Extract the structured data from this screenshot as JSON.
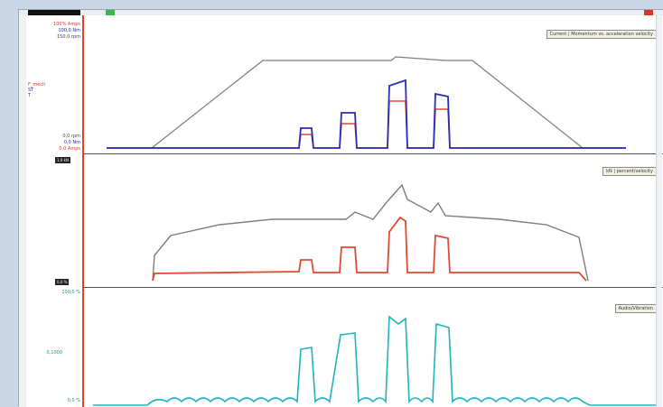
{
  "window": {
    "colors": {
      "gray": "#7d7d7d",
      "blue": "#2a2db5",
      "red": "#e24a2f",
      "teal": "#1fb3bf",
      "accent": "#e2412c"
    }
  },
  "panel1": {
    "labels": {
      "top_unit1": "100% Amps",
      "top_unit2": "100,0 Nm",
      "top_unit3": "150,0 rpm",
      "side_label1": "F_mech",
      "side_label2": "ST",
      "side_label3": "T",
      "bottom_unit1": "0,0 rpm",
      "bottom_unit2": "0,0 Nm",
      "bottom_unit3": "0,0 Amps",
      "legend": "Current | Momentum vs. acceleration velocity"
    }
  },
  "panel2": {
    "labels": {
      "top_value": "1,0 kN",
      "bottom_value": "0,0 %",
      "legend": "kN | percent/velocity"
    }
  },
  "panel3": {
    "labels": {
      "top_value": "100,0 %",
      "mid_value": "0,1000",
      "bottom_value": "0,0 %",
      "legend": "Audio/Vibration"
    }
  }
}
